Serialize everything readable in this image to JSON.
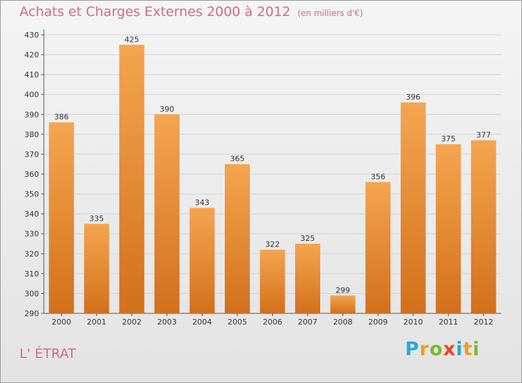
{
  "title": "Achats et Charges Externes 2000 à 2012",
  "unit_label": "(en milliers d'€)",
  "commune": "L' ÉTRAT",
  "brand": {
    "letters": [
      "P",
      "r",
      "o",
      "x",
      "i",
      "t",
      "i"
    ],
    "colors": [
      "#2aa7d6",
      "#f39a1e",
      "#7ab82f",
      "#e8442a",
      "#2aa7d6",
      "#f39a1e",
      "#7ab82f"
    ]
  },
  "colors": {
    "bar_light": "#f5a54f",
    "bar_dark": "#d2701c",
    "text": "#333333",
    "title": "#d06a8f"
  },
  "chart_data": {
    "type": "bar",
    "title": "Achats et Charges Externes 2000 à 2012",
    "xlabel": "",
    "ylabel": "(en milliers d'€)",
    "ylim": [
      290,
      430
    ],
    "yticks": [
      290,
      300,
      310,
      320,
      330,
      340,
      350,
      360,
      370,
      380,
      390,
      400,
      410,
      420,
      430
    ],
    "grid": true,
    "categories": [
      "2000",
      "2001",
      "2002",
      "2003",
      "2004",
      "2005",
      "2006",
      "2007",
      "2008",
      "2009",
      "2010",
      "2011",
      "2012"
    ],
    "values": [
      386,
      335,
      425,
      390,
      343,
      365,
      322,
      325,
      299,
      356,
      396,
      375,
      377
    ]
  }
}
